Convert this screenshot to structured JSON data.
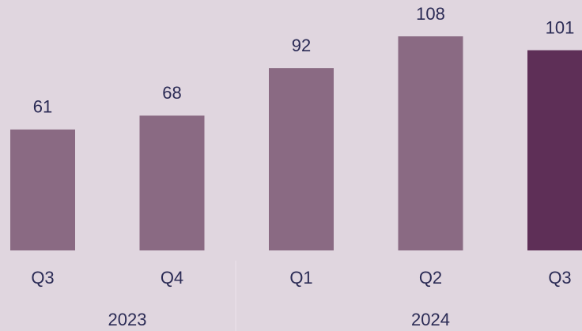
{
  "chart_data": {
    "type": "bar",
    "categories": [
      "Q3",
      "Q4",
      "Q1",
      "Q2",
      "Q3"
    ],
    "values": [
      61,
      68,
      92,
      108,
      101
    ],
    "colors": [
      "#8a6a83",
      "#8a6a83",
      "#8a6a83",
      "#8a6a83",
      "#5e2f57"
    ],
    "groups": [
      {
        "name": "2023",
        "span": 2
      },
      {
        "name": "2024",
        "span": 3
      }
    ]
  }
}
